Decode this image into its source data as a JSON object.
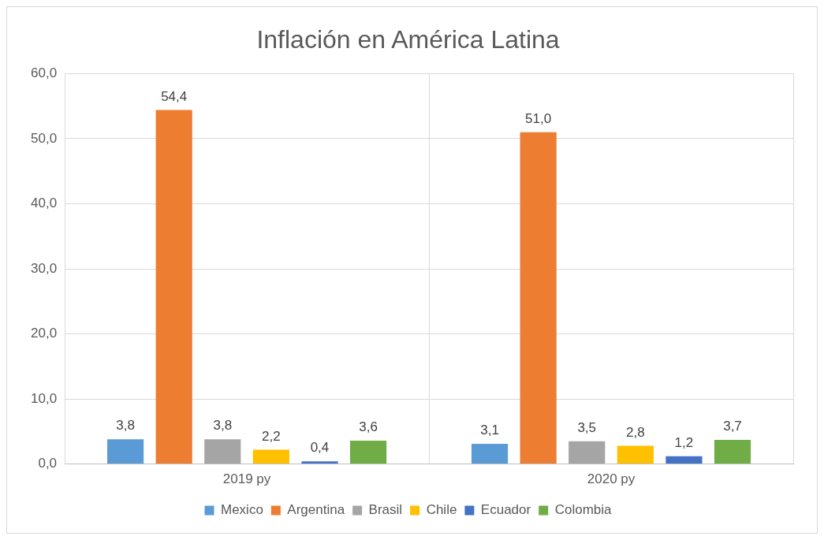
{
  "chart_data": {
    "type": "bar",
    "title": "Inflación en América Latina",
    "categories": [
      "2019 py",
      "2020 py"
    ],
    "series": [
      {
        "name": "Mexico",
        "color": "#5b9bd5",
        "values": [
          3.8,
          3.1
        ],
        "value_labels": [
          "3,8",
          "3,1"
        ]
      },
      {
        "name": "Argentina",
        "color": "#ed7d31",
        "values": [
          54.4,
          51.0
        ],
        "value_labels": [
          "54,4",
          "51,0"
        ]
      },
      {
        "name": "Brasil",
        "color": "#a5a5a5",
        "values": [
          3.8,
          3.5
        ],
        "value_labels": [
          "3,8",
          "3,5"
        ]
      },
      {
        "name": "Chile",
        "color": "#ffc000",
        "values": [
          2.2,
          2.8
        ],
        "value_labels": [
          "2,2",
          "2,8"
        ]
      },
      {
        "name": "Ecuador",
        "color": "#4472c4",
        "values": [
          0.4,
          1.2
        ],
        "value_labels": [
          "0,4",
          "1,2"
        ]
      },
      {
        "name": "Colombia",
        "color": "#70ad47",
        "values": [
          3.6,
          3.7
        ],
        "value_labels": [
          "3,6",
          "3,7"
        ]
      }
    ],
    "ylim": [
      0,
      60
    ],
    "yticks": [
      {
        "value": 0,
        "label": "0,0"
      },
      {
        "value": 10,
        "label": "10,0"
      },
      {
        "value": 20,
        "label": "20,0"
      },
      {
        "value": 30,
        "label": "30,0"
      },
      {
        "value": 40,
        "label": "40,0"
      },
      {
        "value": 50,
        "label": "50,0"
      },
      {
        "value": 60,
        "label": "60,0"
      }
    ],
    "grid": true,
    "legend": "bottom"
  }
}
